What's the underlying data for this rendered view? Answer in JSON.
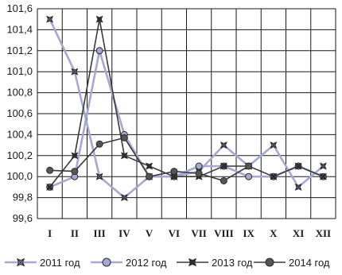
{
  "chart_data": {
    "type": "line",
    "categories": [
      "I",
      "II",
      "III",
      "IV",
      "V",
      "VI",
      "VII",
      "VIII",
      "IX",
      "X",
      "XI",
      "XII"
    ],
    "ylim": [
      99.6,
      101.6
    ],
    "yticks": [
      "101,6",
      "101,4",
      "101,2",
      "101,0",
      "100,8",
      "100,6",
      "100,4",
      "100,2",
      "100,0",
      "99,8",
      "99,6"
    ],
    "xtick_labels": [
      "I",
      "II",
      "III",
      "IV",
      "V",
      "VI",
      "VII",
      "VIII",
      "IX",
      "X",
      "XI",
      "XII"
    ],
    "grid": true,
    "legend_position": "bottom",
    "series": [
      {
        "name": "2011 год",
        "color": "#a6a8d4",
        "marker": "star-x",
        "values": [
          101.5,
          101.0,
          100.0,
          99.8,
          100.0,
          100.0,
          100.05,
          100.3,
          100.1,
          100.3,
          99.9,
          100.1
        ]
      },
      {
        "name": "2012 год",
        "color": "#a6a8d4",
        "marker": "circle",
        "values": [
          99.9,
          100.0,
          101.2,
          100.4,
          100.0,
          100.0,
          100.1,
          100.1,
          100.0,
          100.0,
          100.1,
          100.0
        ]
      },
      {
        "name": "2013 год",
        "color": "#3a3a3a",
        "marker": "star-x",
        "values": [
          99.9,
          100.2,
          101.5,
          100.2,
          100.1,
          100.0,
          100.0,
          100.1,
          100.1,
          100.0,
          100.1,
          100.0
        ]
      },
      {
        "name": "2014 год",
        "color": "#3a3a3a",
        "marker": "circle",
        "values": [
          100.06,
          100.05,
          100.31,
          100.37,
          100.0,
          100.05,
          100.03,
          99.96,
          100.1,
          null,
          null,
          null
        ]
      }
    ]
  }
}
